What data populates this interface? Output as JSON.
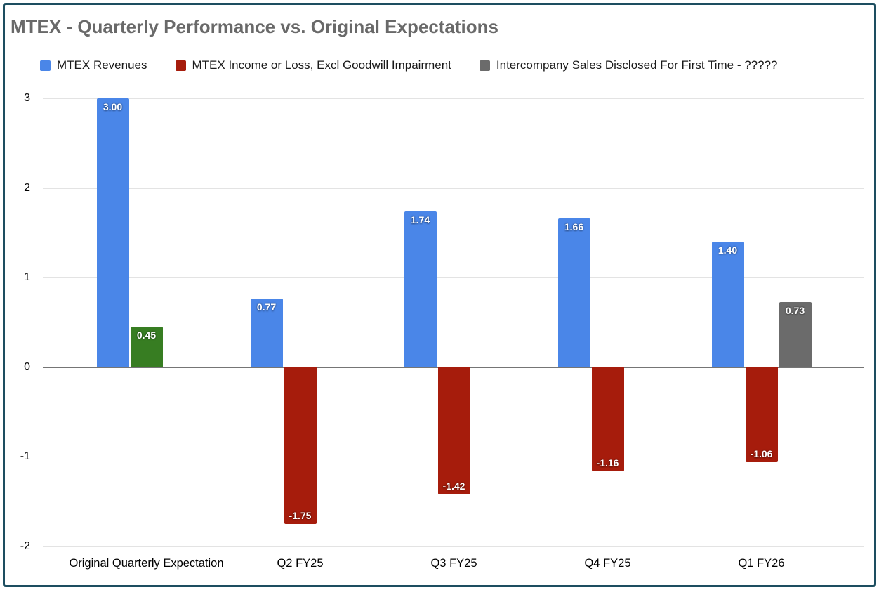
{
  "colors": {
    "frame_border": "#1d4e60",
    "background": "#ffffff",
    "title_text": "#696969",
    "gridline": "#e3e3e3",
    "zero_line": "#757575",
    "axis_text": "#000000",
    "bar_label_text": "#ffffff"
  },
  "chart_data": {
    "type": "bar",
    "title": "MTEX - Quarterly Performance vs. Original Expectations",
    "legend_position": "top",
    "grid": true,
    "ylim": [
      -2,
      3
    ],
    "yticks": [
      3,
      2,
      1,
      0,
      -1,
      -2
    ],
    "xlabel": "",
    "ylabel": "",
    "categories": [
      "Original Quarterly Expectation",
      "Q2 FY25",
      "Q3 FY25",
      "Q4 FY25",
      "Q1 FY26"
    ],
    "series": [
      {
        "key": "revenues",
        "name": "MTEX Revenues",
        "color": "#4a86e8",
        "values": [
          3.0,
          0.77,
          1.74,
          1.66,
          1.4
        ],
        "labels": [
          "3.00",
          "0.77",
          "1.74",
          "1.66",
          "1.40"
        ]
      },
      {
        "key": "income",
        "name": "MTEX Income or Loss, Excl Goodwill Impairment",
        "color": "#a61c0c",
        "point_colors": [
          "#377d22",
          null,
          null,
          null,
          null
        ],
        "values": [
          0.45,
          -1.75,
          -1.42,
          -1.16,
          -1.06
        ],
        "labels": [
          "0.45",
          "-1.75",
          "-1.42",
          "-1.16",
          "-1.06"
        ]
      },
      {
        "key": "intercompany",
        "name": "Intercompany Sales Disclosed For First Time - ?????",
        "color": "#6b6b6b",
        "values": [
          null,
          null,
          null,
          null,
          0.73
        ],
        "labels": [
          null,
          null,
          null,
          null,
          "0.73"
        ]
      }
    ]
  }
}
